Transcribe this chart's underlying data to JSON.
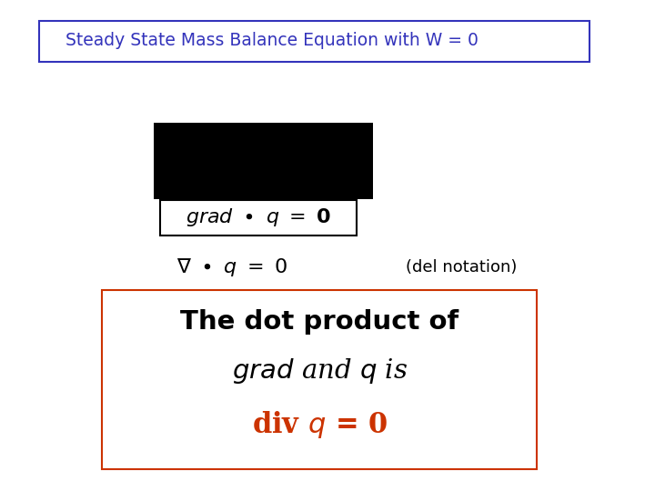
{
  "title": "Steady State Mass Balance Equation with W = 0",
  "title_color": "#3333bb",
  "title_border_color": "#3333bb",
  "del_notation_text": "(del notation)",
  "bottom_line1": "The dot product of",
  "bottom_line2_a": "grad",
  "bottom_line2_b": " and ",
  "bottom_line2_c": "q",
  "bottom_line2_d": " is",
  "bottom_line3_pre": "div ",
  "bottom_line3_q": "q",
  "bottom_line3_post": " = 0",
  "bottom_text_color": "#000000",
  "bottom_line3_color": "#cc3300",
  "bottom_border_color": "#cc3300",
  "bg_color": "#ffffff"
}
